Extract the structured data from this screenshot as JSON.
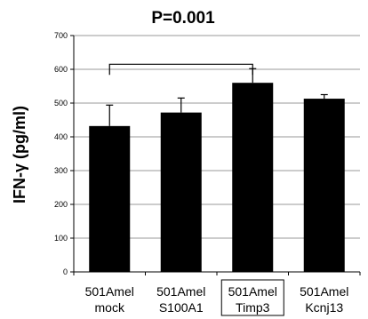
{
  "chart_data": {
    "type": "bar",
    "title": "P=0.001",
    "ylabel": "IFN-γ (pg/ml)",
    "xlabel": "",
    "ylim": [
      0,
      700
    ],
    "yticks": [
      "0",
      "100",
      "200",
      "300",
      "400",
      "500",
      "600",
      "700"
    ],
    "categories": [
      {
        "line1": "501Amel",
        "line2": "mock"
      },
      {
        "line1": "501Amel",
        "line2": "S100A1"
      },
      {
        "line1": "501Amel",
        "line2": "Timp3"
      },
      {
        "line1": "501Amel",
        "line2": "Kcnj13"
      }
    ],
    "values": [
      432,
      472,
      560,
      513
    ],
    "errors": [
      62,
      43,
      42,
      12
    ],
    "highlighted_category": 2,
    "comparison_bracket": {
      "from": 0,
      "to": 2,
      "y": 615
    },
    "grid": true,
    "bar_color": "#000000",
    "grid_color": "#9a9a9a"
  }
}
